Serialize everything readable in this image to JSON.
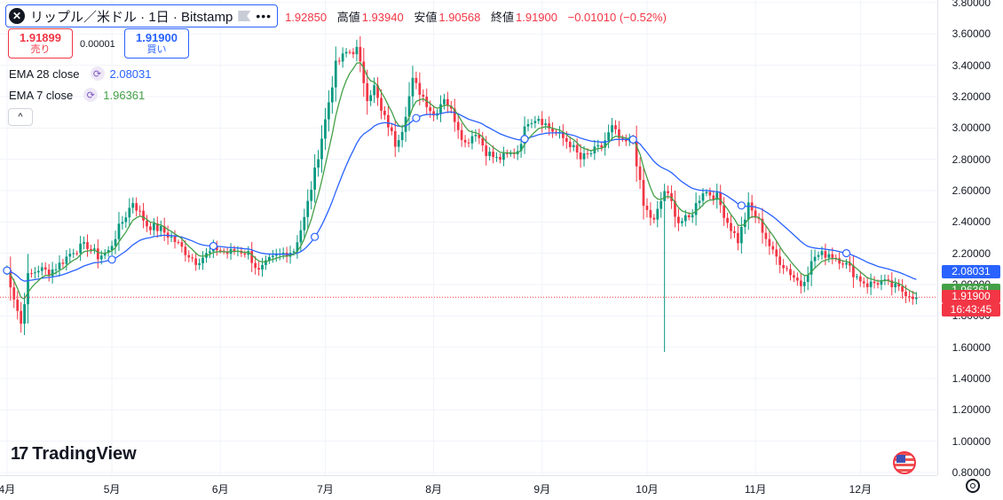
{
  "header": {
    "symbol_title": "リップル／米ドル · 1日 · Bitstamp",
    "logo_glyph": "✕",
    "ohlc": {
      "open_value": "1.92850",
      "high_key": "高値",
      "high_value": "1.93940",
      "low_key": "安値",
      "low_value": "1.90568",
      "close_key": "終値",
      "close_value": "1.91900",
      "change": "−0.01010 (−0.52%)"
    }
  },
  "trade": {
    "sell_price": "1.91899",
    "sell_label": "売り",
    "spread": "0.00001",
    "buy_price": "1.91900",
    "buy_label": "買い"
  },
  "indicators": [
    {
      "name": "EMA 28 close",
      "value": "2.08031",
      "color": "#2962ff"
    },
    {
      "name": "EMA 7 close",
      "value": "1.96361",
      "color": "#43a047"
    }
  ],
  "collapse_glyph": "^",
  "branding": {
    "text": "TradingView",
    "mark": "17"
  },
  "price_tags": {
    "ema28": "2.08031",
    "ema7": "1.96361",
    "last": "1.91900",
    "countdown": "16:43:45"
  },
  "colors": {
    "up": "#089981",
    "down": "#f23645",
    "ema28": "#2962ff",
    "ema7": "#43a047",
    "grid": "#f0f3fa"
  },
  "chart_data": {
    "type": "candlestick",
    "title": "リップル／米ドル · 1日 · Bitstamp",
    "y_ticks": [
      "0.80000",
      "1.00000",
      "1.20000",
      "1.40000",
      "1.60000",
      "1.80000",
      "2.00000",
      "2.20000",
      "2.40000",
      "2.60000",
      "2.80000",
      "3.00000",
      "3.20000",
      "3.40000",
      "3.60000",
      "3.80000"
    ],
    "ylim": [
      0.8,
      3.8
    ],
    "x_ticks": [
      "4月",
      "5月",
      "6月",
      "7月",
      "8月",
      "9月",
      "10月",
      "11月",
      "12月"
    ],
    "x_tick_days": [
      1,
      31,
      62,
      92,
      123,
      154,
      184,
      215,
      245
    ],
    "xlim_days": [
      -1,
      267
    ],
    "last_close": 1.919,
    "series": [
      {
        "name": "リップル／米ドル",
        "kind": "close",
        "days": [
          1,
          5,
          7,
          10,
          13,
          16,
          20,
          24,
          27,
          30,
          33,
          37,
          41,
          45,
          48,
          52,
          55,
          58,
          61,
          64,
          67,
          70,
          73,
          76,
          80,
          83,
          86,
          89,
          92,
          95,
          98,
          101,
          104,
          106,
          108,
          110,
          112,
          114,
          117,
          120,
          123,
          126,
          129,
          132,
          135,
          138,
          141,
          144,
          147,
          150,
          153,
          156,
          159,
          162,
          165,
          168,
          171,
          174,
          177,
          180,
          183,
          186,
          189,
          191,
          193,
          196,
          200,
          204,
          207,
          210,
          213,
          216,
          220,
          224,
          228,
          232,
          236,
          240,
          244,
          247,
          251,
          255,
          258,
          261
        ],
        "values": [
          2.09,
          1.75,
          2.05,
          2.1,
          2.08,
          2.13,
          2.22,
          2.25,
          2.18,
          2.21,
          2.36,
          2.53,
          2.38,
          2.35,
          2.3,
          2.21,
          2.15,
          2.19,
          2.23,
          2.2,
          2.22,
          2.2,
          2.08,
          2.15,
          2.2,
          2.22,
          2.42,
          2.72,
          3.05,
          3.4,
          3.48,
          3.5,
          3.2,
          3.26,
          3.1,
          3.02,
          2.9,
          3.0,
          3.3,
          3.2,
          3.08,
          3.2,
          3.06,
          2.9,
          2.98,
          2.85,
          2.8,
          2.82,
          2.86,
          3.05,
          3.07,
          3.0,
          2.95,
          2.9,
          2.8,
          2.84,
          2.88,
          3.0,
          2.9,
          2.92,
          2.5,
          2.4,
          2.6,
          2.52,
          2.4,
          2.42,
          2.6,
          2.56,
          2.4,
          2.28,
          2.5,
          2.4,
          2.2,
          2.1,
          2.0,
          2.18,
          2.2,
          2.15,
          2.05,
          2.0,
          2.02,
          1.98,
          1.95,
          1.92
        ]
      },
      {
        "name": "EMA 28 close",
        "kind": "ema28"
      },
      {
        "name": "EMA 7 close",
        "kind": "ema7"
      }
    ],
    "annotations": {
      "dividend_marker_days": [
        1,
        31,
        60,
        89,
        118,
        149,
        180,
        211,
        241
      ],
      "long_wick": {
        "day": 189,
        "low": 1.57
      }
    },
    "grid": true,
    "legend": "top-left"
  }
}
